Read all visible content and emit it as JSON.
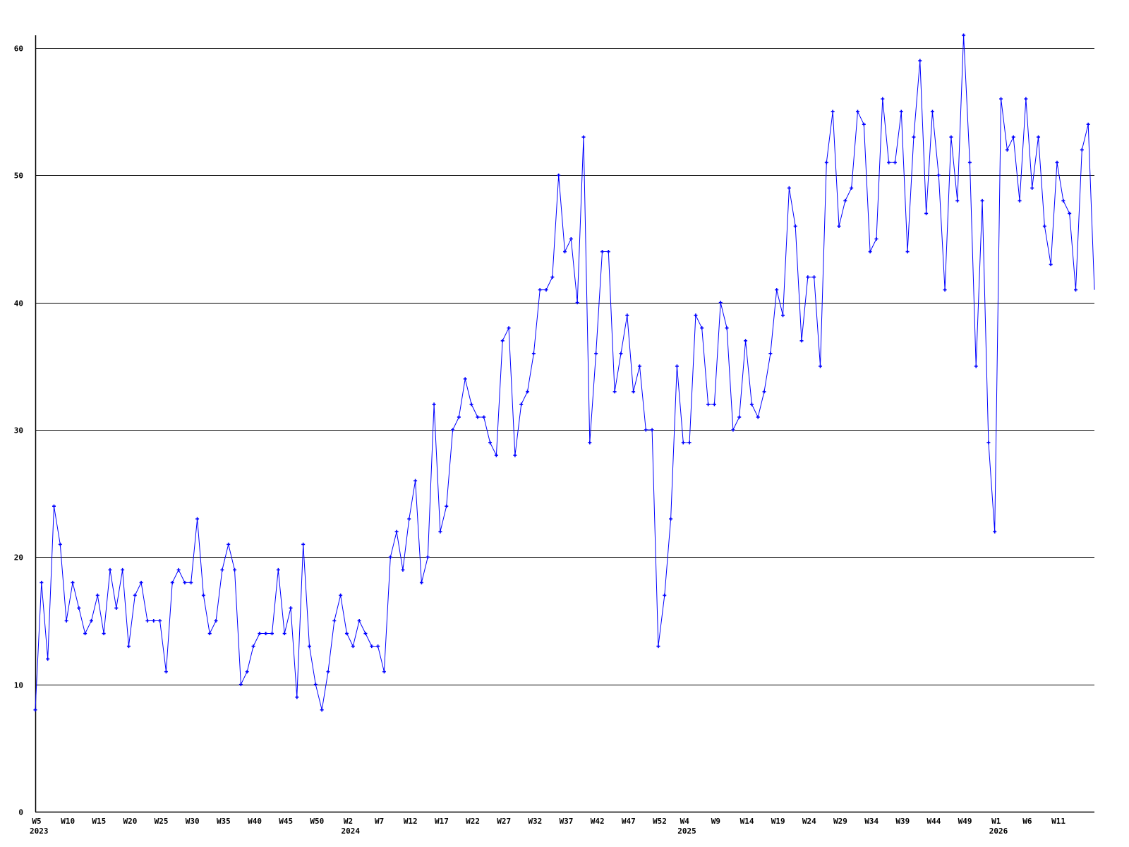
{
  "chart_data": {
    "type": "line",
    "title": "",
    "xlabel": "",
    "ylabel": "",
    "ylim": [
      0,
      60
    ],
    "y_ticks": [
      0,
      10,
      20,
      30,
      40,
      50,
      60
    ],
    "grid": "horizontal",
    "line_color": "#0000ff",
    "marker": "plus",
    "x_ticks": [
      {
        "label": "W5",
        "year": "2023",
        "index": 0
      },
      {
        "label": "W10",
        "index": 5
      },
      {
        "label": "W15",
        "index": 10
      },
      {
        "label": "W20",
        "index": 15
      },
      {
        "label": "W25",
        "index": 20
      },
      {
        "label": "W30",
        "index": 25
      },
      {
        "label": "W35",
        "index": 30
      },
      {
        "label": "W40",
        "index": 35
      },
      {
        "label": "W45",
        "index": 40
      },
      {
        "label": "W50",
        "index": 45
      },
      {
        "label": "W2",
        "year": "2024",
        "index": 50
      },
      {
        "label": "W7",
        "index": 55
      },
      {
        "label": "W12",
        "index": 60
      },
      {
        "label": "W17",
        "index": 65
      },
      {
        "label": "W22",
        "index": 70
      },
      {
        "label": "W27",
        "index": 75
      },
      {
        "label": "W32",
        "index": 80
      },
      {
        "label": "W37",
        "index": 85
      },
      {
        "label": "W42",
        "index": 90
      },
      {
        "label": "W47",
        "index": 95
      },
      {
        "label": "W52",
        "index": 100
      },
      {
        "label": "W4",
        "year": "2025",
        "index": 104
      },
      {
        "label": "W9",
        "index": 109
      },
      {
        "label": "W14",
        "index": 114
      },
      {
        "label": "W19",
        "index": 119
      },
      {
        "label": "W24",
        "index": 124
      },
      {
        "label": "W29",
        "index": 129
      },
      {
        "label": "W34",
        "index": 134
      },
      {
        "label": "W39",
        "index": 139
      },
      {
        "label": "W44",
        "index": 144
      },
      {
        "label": "W49",
        "index": 149
      },
      {
        "label": "W1",
        "year": "2026",
        "index": 154
      },
      {
        "label": "W6",
        "index": 159
      },
      {
        "label": "W11",
        "index": 164
      }
    ],
    "values": [
      8,
      18,
      12,
      24,
      21,
      15,
      18,
      16,
      14,
      15,
      17,
      14,
      19,
      16,
      19,
      13,
      17,
      18,
      15,
      15,
      15,
      11,
      18,
      19,
      18,
      18,
      23,
      17,
      14,
      15,
      19,
      21,
      19,
      10,
      11,
      13,
      14,
      14,
      14,
      19,
      14,
      16,
      9,
      21,
      13,
      10,
      8,
      11,
      15,
      17,
      14,
      13,
      15,
      14,
      13,
      13,
      11,
      20,
      22,
      19,
      23,
      26,
      18,
      20,
      32,
      22,
      24,
      30,
      31,
      34,
      32,
      31,
      31,
      29,
      28,
      37,
      38,
      28,
      32,
      33,
      36,
      41,
      41,
      42,
      50,
      44,
      45,
      40,
      53,
      29,
      36,
      44,
      44,
      33,
      36,
      39,
      33,
      35,
      30,
      30,
      13,
      17,
      23,
      35,
      29,
      29,
      39,
      38,
      32,
      32,
      40,
      38,
      30,
      31,
      37,
      32,
      31,
      33,
      36,
      41,
      39,
      49,
      46,
      37,
      42,
      42,
      35,
      51,
      55,
      46,
      48,
      49,
      55,
      54,
      44,
      45,
      56,
      51,
      51,
      55,
      44,
      53,
      59,
      47,
      55,
      50,
      41,
      53,
      48,
      61,
      51,
      35,
      48,
      29,
      22,
      56,
      52,
      53,
      48,
      56,
      49,
      53,
      46,
      43,
      51,
      48,
      47,
      41,
      52,
      54,
      41
    ]
  }
}
